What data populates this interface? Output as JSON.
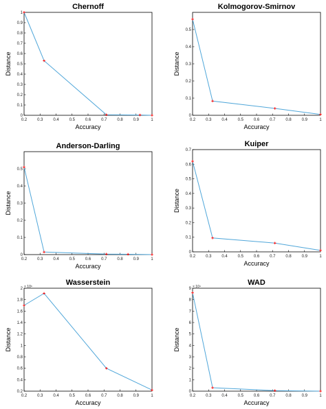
{
  "chart_data": [
    {
      "type": "line",
      "title": "Chernoff",
      "xlabel": "Accuracy",
      "ylabel": "Distance",
      "xlim": [
        0.2,
        1
      ],
      "ylim": [
        0,
        1
      ],
      "xticks": [
        "0.2",
        "0.3",
        "0.4",
        "0.5",
        "0.6",
        "0.7",
        "0.8",
        "0.9",
        "1"
      ],
      "yticks": [
        "0",
        "0.1",
        "0.2",
        "0.3",
        "0.4",
        "0.5",
        "0.6",
        "0.7",
        "0.8",
        "0.9",
        "1"
      ],
      "exponent": "",
      "x": [
        0.2,
        0.325,
        0.715,
        0.925,
        1.0
      ],
      "y": [
        1.0,
        0.53,
        0.005,
        0.003,
        0.0
      ],
      "color": "#4fa6d9",
      "marker_color": "#ff0000"
    },
    {
      "type": "line",
      "title": "Kolmogorov-Smirnov",
      "xlabel": "Accuracy",
      "ylabel": "Distance",
      "xlim": [
        0.2,
        1
      ],
      "ylim": [
        0,
        0.6
      ],
      "xticks": [
        "0.2",
        "0.3",
        "0.4",
        "0.5",
        "0.6",
        "0.7",
        "0.8",
        "0.9",
        "1"
      ],
      "yticks": [
        "0",
        "0.1",
        "0.2",
        "0.3",
        "0.4",
        "0.5"
      ],
      "exponent": "",
      "x": [
        0.2,
        0.325,
        0.715,
        1.0
      ],
      "y": [
        0.56,
        0.083,
        0.04,
        0.005
      ],
      "color": "#4fa6d9",
      "marker_color": "#ff0000"
    },
    {
      "type": "line",
      "title": "Anderson-Darling",
      "xlabel": "Accuracy",
      "ylabel": "Distance",
      "xlim": [
        0.2,
        1
      ],
      "ylim": [
        0,
        0.6
      ],
      "xticks": [
        "0.2",
        "0.3",
        "0.4",
        "0.5",
        "0.6",
        "0.7",
        "0.8",
        "0.9",
        "1"
      ],
      "yticks": [
        "0",
        "0.1",
        "0.2",
        "0.3",
        "0.4",
        "0.5"
      ],
      "exponent": "",
      "x": [
        0.2,
        0.325,
        0.715,
        0.85,
        1.0
      ],
      "y": [
        0.51,
        0.015,
        0.003,
        0.002,
        0.0
      ],
      "color": "#4fa6d9",
      "marker_color": "#ff0000"
    },
    {
      "type": "line",
      "title": "Kuiper",
      "xlabel": "Accuracy",
      "ylabel": "Distance",
      "xlim": [
        0.2,
        1
      ],
      "ylim": [
        0,
        0.7
      ],
      "xticks": [
        "0.2",
        "0.3",
        "0.4",
        "0.5",
        "0.6",
        "0.7",
        "0.8",
        "0.9",
        "1"
      ],
      "yticks": [
        "0",
        "0.1",
        "0.2",
        "0.3",
        "0.4",
        "0.5",
        "0.6",
        "0.7"
      ],
      "exponent": "",
      "x": [
        0.2,
        0.325,
        0.715,
        1.0
      ],
      "y": [
        0.62,
        0.095,
        0.06,
        0.01
      ],
      "color": "#4fa6d9",
      "marker_color": "#ff0000"
    },
    {
      "type": "line",
      "title": "Wasserstein",
      "xlabel": "Accuracy",
      "ylabel": "Distance",
      "xlim": [
        0.2,
        1
      ],
      "ylim": [
        0.2,
        2
      ],
      "xticks": [
        "0.2",
        "0.3",
        "0.4",
        "0.5",
        "0.6",
        "0.7",
        "0.8",
        "0.9",
        "1"
      ],
      "yticks": [
        "0.2",
        "0.4",
        "0.6",
        "0.8",
        "1",
        "1.2",
        "1.4",
        "1.6",
        "1.8",
        "2"
      ],
      "exponent": "× 10⁶",
      "x": [
        0.2,
        0.325,
        0.715,
        1.0
      ],
      "y": [
        1.7,
        1.91,
        0.6,
        0.22
      ],
      "color": "#4fa6d9",
      "marker_color": "#ff0000"
    },
    {
      "type": "line",
      "title": "WAD",
      "xlabel": "Accuracy",
      "ylabel": "Distance",
      "xlim": [
        0.2,
        1
      ],
      "ylim": [
        0,
        9
      ],
      "xticks": [
        "0.2",
        "0.3",
        "0.4",
        "0.5",
        "0.6",
        "0.7",
        "0.8",
        "0.9",
        "1"
      ],
      "yticks": [
        "0",
        "1",
        "2",
        "3",
        "4",
        "5",
        "6",
        "7",
        "8",
        "9"
      ],
      "exponent": "× 10⁴",
      "x": [
        0.2,
        0.325,
        0.715,
        1.0
      ],
      "y": [
        8.6,
        0.3,
        0.05,
        0.0
      ],
      "color": "#4fa6d9",
      "marker_color": "#ff0000"
    }
  ]
}
